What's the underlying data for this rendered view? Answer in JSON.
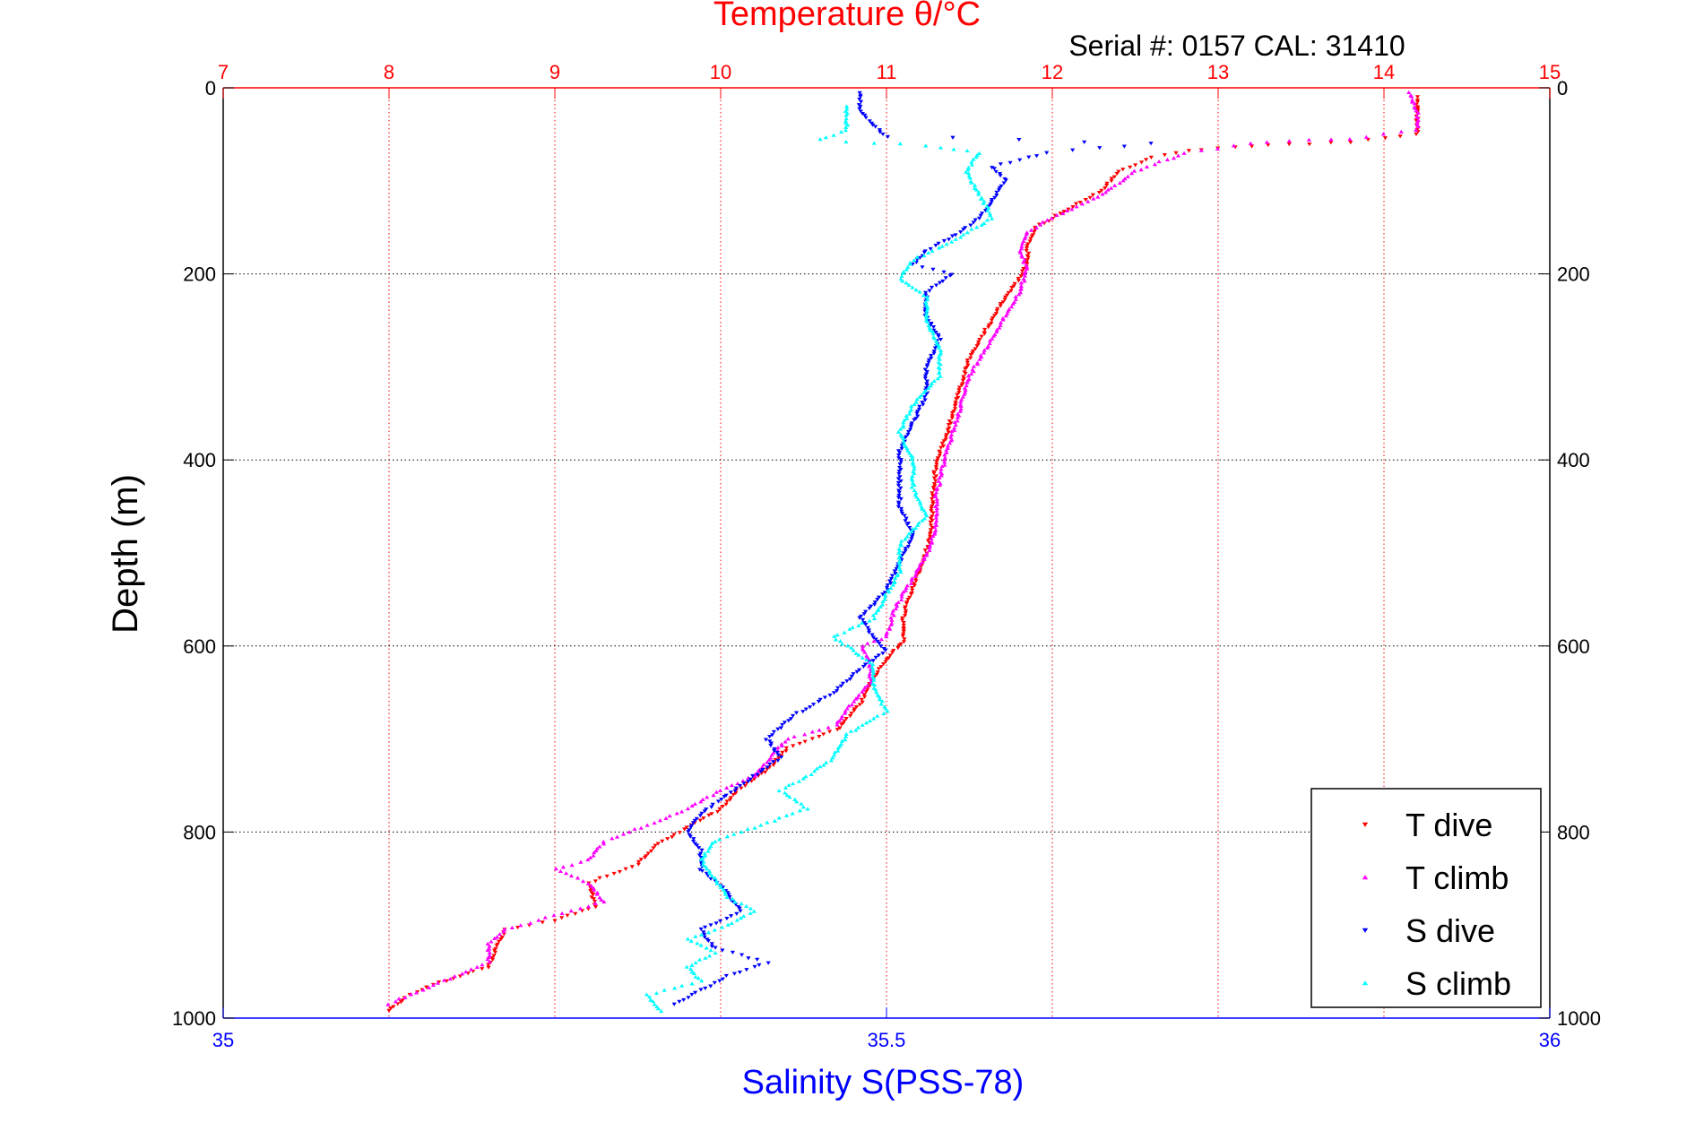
{
  "chart_data": {
    "type": "scatter",
    "title": "Temperature θ/°C",
    "subtitle": "Serial #: 0157  CAL: 31410",
    "ylabel": "Depth (m)",
    "xlabel_bottom": "Salinity S(PSS-78)",
    "ylim": [
      1000,
      0
    ],
    "y_reversed": true,
    "y_ticks": [
      "0",
      "200",
      "400",
      "600",
      "800",
      "1000"
    ],
    "x_top": {
      "label": "Temperature θ/°C",
      "range": [
        7,
        15
      ],
      "ticks": [
        "7",
        "8",
        "9",
        "10",
        "11",
        "12",
        "13",
        "14",
        "15"
      ],
      "color": "#ff0000",
      "grid": true
    },
    "x_bottom": {
      "label": "Salinity S(PSS-78)",
      "range": [
        35,
        36
      ],
      "ticks": [
        "35",
        "35.5",
        "36"
      ],
      "color": "#0000ff"
    },
    "grid": true,
    "legend_position": "bottom-right",
    "legend": [
      "T dive",
      "T climb",
      "S dive",
      "S climb"
    ],
    "series": [
      {
        "name": "T dive",
        "axis": "temperature",
        "color": "#ff0000",
        "marker": "triangle-down",
        "points": [
          [
            14.2,
            10
          ],
          [
            14.2,
            30
          ],
          [
            14.2,
            50
          ],
          [
            13.8,
            58
          ],
          [
            13.3,
            62
          ],
          [
            12.9,
            66
          ],
          [
            12.6,
            75
          ],
          [
            12.4,
            90
          ],
          [
            12.3,
            110
          ],
          [
            12.1,
            130
          ],
          [
            11.9,
            150
          ],
          [
            11.85,
            170
          ],
          [
            11.85,
            190
          ],
          [
            11.8,
            205
          ],
          [
            11.7,
            230
          ],
          [
            11.6,
            260
          ],
          [
            11.5,
            290
          ],
          [
            11.45,
            320
          ],
          [
            11.4,
            350
          ],
          [
            11.35,
            380
          ],
          [
            11.3,
            400
          ],
          [
            11.28,
            440
          ],
          [
            11.27,
            480
          ],
          [
            11.22,
            510
          ],
          [
            11.15,
            540
          ],
          [
            11.1,
            570
          ],
          [
            11.1,
            595
          ],
          [
            11.0,
            615
          ],
          [
            10.9,
            640
          ],
          [
            10.85,
            660
          ],
          [
            10.7,
            690
          ],
          [
            10.4,
            710
          ],
          [
            10.3,
            730
          ],
          [
            10.1,
            755
          ],
          [
            10.0,
            775
          ],
          [
            9.8,
            795
          ],
          [
            9.6,
            815
          ],
          [
            9.5,
            835
          ],
          [
            9.2,
            855
          ],
          [
            9.25,
            880
          ],
          [
            9.0,
            895
          ],
          [
            8.7,
            905
          ],
          [
            8.65,
            925
          ],
          [
            8.6,
            945
          ],
          [
            8.3,
            962
          ],
          [
            8.1,
            978
          ],
          [
            8.0,
            992
          ]
        ]
      },
      {
        "name": "T climb",
        "axis": "temperature",
        "color": "#ff00ff",
        "marker": "triangle-up",
        "points": [
          [
            8.0,
            985
          ],
          [
            8.2,
            970
          ],
          [
            8.4,
            955
          ],
          [
            8.6,
            940
          ],
          [
            8.6,
            920
          ],
          [
            8.7,
            905
          ],
          [
            9.0,
            890
          ],
          [
            9.3,
            875
          ],
          [
            9.2,
            855
          ],
          [
            9.0,
            840
          ],
          [
            9.2,
            830
          ],
          [
            9.3,
            810
          ],
          [
            9.6,
            790
          ],
          [
            9.8,
            775
          ],
          [
            10.0,
            755
          ],
          [
            10.2,
            740
          ],
          [
            10.3,
            720
          ],
          [
            10.4,
            700
          ],
          [
            10.7,
            685
          ],
          [
            10.8,
            660
          ],
          [
            10.9,
            640
          ],
          [
            10.9,
            620
          ],
          [
            10.85,
            600
          ],
          [
            11.0,
            590
          ],
          [
            11.05,
            560
          ],
          [
            11.15,
            530
          ],
          [
            11.25,
            500
          ],
          [
            11.3,
            470
          ],
          [
            11.3,
            440
          ],
          [
            11.35,
            400
          ],
          [
            11.4,
            370
          ],
          [
            11.45,
            340
          ],
          [
            11.5,
            310
          ],
          [
            11.6,
            280
          ],
          [
            11.7,
            250
          ],
          [
            11.8,
            220
          ],
          [
            11.85,
            195
          ],
          [
            11.8,
            175
          ],
          [
            11.85,
            155
          ],
          [
            12.0,
            140
          ],
          [
            12.3,
            115
          ],
          [
            12.5,
            90
          ],
          [
            12.8,
            70
          ],
          [
            13.3,
            58
          ],
          [
            13.8,
            55
          ],
          [
            14.2,
            45
          ],
          [
            14.2,
            25
          ],
          [
            14.15,
            5
          ]
        ]
      },
      {
        "name": "S dive",
        "axis": "salinity",
        "color": "#0000ff",
        "marker": "triangle-down",
        "points": [
          [
            35.48,
            5
          ],
          [
            35.48,
            25
          ],
          [
            35.49,
            40
          ],
          [
            35.5,
            52
          ],
          [
            35.7,
            60
          ],
          [
            35.62,
            70
          ],
          [
            35.58,
            85
          ],
          [
            35.59,
            100
          ],
          [
            35.58,
            120
          ],
          [
            35.57,
            140
          ],
          [
            35.55,
            160
          ],
          [
            35.53,
            175
          ],
          [
            35.52,
            190
          ],
          [
            35.55,
            200
          ],
          [
            35.53,
            220
          ],
          [
            35.53,
            245
          ],
          [
            35.54,
            270
          ],
          [
            35.53,
            300
          ],
          [
            35.53,
            330
          ],
          [
            35.52,
            360
          ],
          [
            35.51,
            390
          ],
          [
            35.51,
            420
          ],
          [
            35.51,
            450
          ],
          [
            35.52,
            480
          ],
          [
            35.51,
            510
          ],
          [
            35.5,
            540
          ],
          [
            35.48,
            570
          ],
          [
            35.49,
            590
          ],
          [
            35.5,
            605
          ],
          [
            35.48,
            625
          ],
          [
            35.46,
            650
          ],
          [
            35.43,
            675
          ],
          [
            35.41,
            700
          ],
          [
            35.42,
            720
          ],
          [
            35.4,
            740
          ],
          [
            35.38,
            760
          ],
          [
            35.36,
            780
          ],
          [
            35.35,
            800
          ],
          [
            35.36,
            820
          ],
          [
            35.36,
            840
          ],
          [
            35.38,
            865
          ],
          [
            35.39,
            885
          ],
          [
            35.36,
            905
          ],
          [
            35.37,
            925
          ],
          [
            35.41,
            940
          ],
          [
            35.38,
            955
          ],
          [
            35.36,
            970
          ],
          [
            35.34,
            985
          ]
        ]
      },
      {
        "name": "S climb",
        "axis": "salinity",
        "color": "#00ffff",
        "marker": "triangle-up",
        "points": [
          [
            35.33,
            992
          ],
          [
            35.32,
            975
          ],
          [
            35.36,
            960
          ],
          [
            35.35,
            945
          ],
          [
            35.37,
            930
          ],
          [
            35.35,
            915
          ],
          [
            35.38,
            900
          ],
          [
            35.4,
            885
          ],
          [
            35.38,
            870
          ],
          [
            35.37,
            850
          ],
          [
            35.36,
            830
          ],
          [
            35.37,
            810
          ],
          [
            35.4,
            795
          ],
          [
            35.44,
            775
          ],
          [
            35.42,
            755
          ],
          [
            35.44,
            740
          ],
          [
            35.46,
            720
          ],
          [
            35.47,
            695
          ],
          [
            35.5,
            670
          ],
          [
            35.49,
            645
          ],
          [
            35.49,
            620
          ],
          [
            35.47,
            600
          ],
          [
            35.46,
            590
          ],
          [
            35.49,
            570
          ],
          [
            35.5,
            545
          ],
          [
            35.51,
            520
          ],
          [
            35.51,
            490
          ],
          [
            35.53,
            460
          ],
          [
            35.52,
            430
          ],
          [
            35.52,
            400
          ],
          [
            35.51,
            370
          ],
          [
            35.52,
            340
          ],
          [
            35.54,
            310
          ],
          [
            35.54,
            280
          ],
          [
            35.53,
            250
          ],
          [
            35.53,
            225
          ],
          [
            35.51,
            205
          ],
          [
            35.52,
            185
          ],
          [
            35.55,
            165
          ],
          [
            35.58,
            140
          ],
          [
            35.57,
            115
          ],
          [
            35.56,
            90
          ],
          [
            35.57,
            70
          ],
          [
            35.53,
            62
          ],
          [
            35.45,
            56
          ],
          [
            35.47,
            45
          ],
          [
            35.47,
            20
          ]
        ]
      }
    ]
  }
}
